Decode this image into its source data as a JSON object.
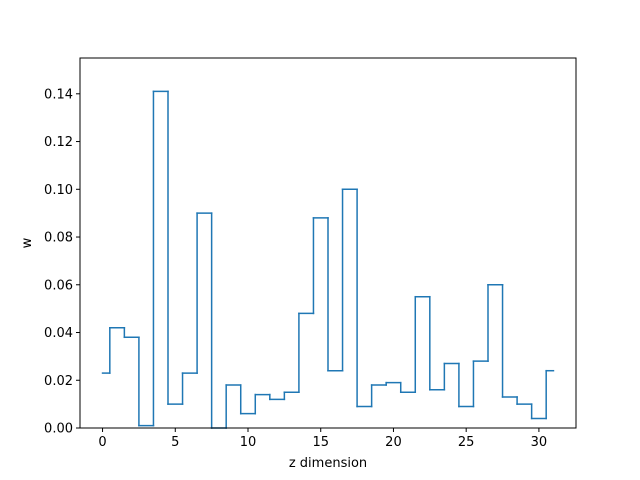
{
  "chart_data": {
    "type": "line",
    "drawstyle": "steps-mid",
    "title": "",
    "xlabel": "z dimension",
    "ylabel": "w",
    "xlim": [
      -1.55,
      32.55
    ],
    "ylim": [
      0,
      0.155
    ],
    "grid": false,
    "x_ticks": [
      0,
      5,
      10,
      15,
      20,
      25,
      30
    ],
    "x_tick_labels": [
      "0",
      "5",
      "10",
      "15",
      "20",
      "25",
      "30"
    ],
    "y_ticks": [
      0.0,
      0.02,
      0.04,
      0.06,
      0.08,
      0.1,
      0.12,
      0.14
    ],
    "y_tick_labels": [
      "0.00",
      "0.02",
      "0.04",
      "0.06",
      "0.08",
      "0.10",
      "0.12",
      "0.14"
    ],
    "color": "#1f77b4",
    "x": [
      0,
      1,
      2,
      3,
      4,
      5,
      6,
      7,
      8,
      9,
      10,
      11,
      12,
      13,
      14,
      15,
      16,
      17,
      18,
      19,
      20,
      21,
      22,
      23,
      24,
      25,
      26,
      27,
      28,
      29,
      30,
      31
    ],
    "values": [
      0.023,
      0.042,
      0.038,
      0.001,
      0.141,
      0.01,
      0.023,
      0.09,
      0.0,
      0.018,
      0.006,
      0.014,
      0.012,
      0.015,
      0.048,
      0.088,
      0.024,
      0.1,
      0.009,
      0.018,
      0.019,
      0.015,
      0.055,
      0.016,
      0.027,
      0.009,
      0.028,
      0.06,
      0.013,
      0.01,
      0.004,
      0.024
    ]
  }
}
